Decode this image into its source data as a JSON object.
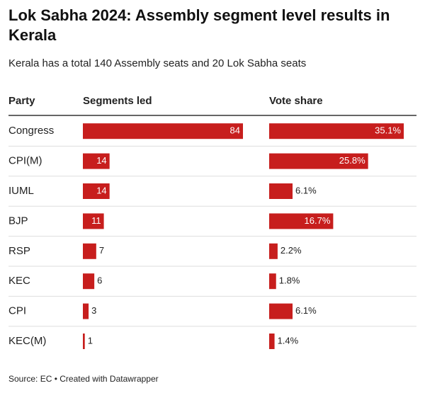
{
  "chart_data": {
    "type": "table-bars",
    "title": "Lok Sabha 2024: Assembly segment level results in Kerala",
    "subtitle": "Kerala has a total 140 Assembly seats and 20 Lok Sabha seats",
    "columns": [
      "Party",
      "Segments led",
      "Vote share"
    ],
    "categories": [
      "Congress",
      "CPI(M)",
      "IUML",
      "BJP",
      "RSP",
      "KEC",
      "CPI",
      "KEC(M)"
    ],
    "series": [
      {
        "name": "Segments led",
        "color": "#c71e1d",
        "values": [
          84,
          14,
          14,
          11,
          7,
          6,
          3,
          1
        ]
      },
      {
        "name": "Vote share",
        "color": "#c71e1d",
        "values": [
          35.1,
          25.8,
          6.1,
          16.7,
          2.2,
          1.8,
          6.1,
          1.4
        ],
        "value_labels": [
          "35.1%",
          "25.8%",
          "6.1%",
          "16.7%",
          "2.2%",
          "1.8%",
          "6.1%",
          "1.4%"
        ]
      }
    ],
    "source": "Source: EC • Created with Datawrapper"
  }
}
